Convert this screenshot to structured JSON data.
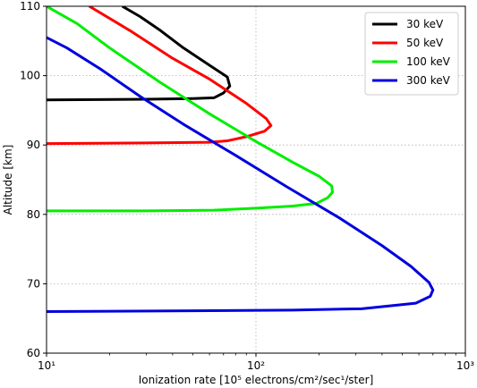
{
  "chart_data": {
    "type": "line",
    "xlabel": "Ionization rate [10⁵ electrons/cm²/sec¹/ster]",
    "ylabel": "Altitude [km]",
    "xscale": "log",
    "xlim": [
      10,
      1000
    ],
    "ylim": [
      60,
      110
    ],
    "xticks": [
      {
        "value": 10,
        "label": "10¹"
      },
      {
        "value": 100,
        "label": "10²"
      },
      {
        "value": 1000,
        "label": "10³"
      }
    ],
    "yticks": [
      60,
      70,
      80,
      90,
      100,
      110
    ],
    "grid": true,
    "legend_position": "top-right",
    "series": [
      {
        "name": "30 keV",
        "color": "#000000",
        "points": [
          [
            10,
            96.5
          ],
          [
            30,
            96.6
          ],
          [
            50,
            96.7
          ],
          [
            63,
            96.8
          ],
          [
            70,
            97.5
          ],
          [
            75,
            98.5
          ],
          [
            73,
            99.8
          ],
          [
            60,
            101.5
          ],
          [
            45,
            104
          ],
          [
            35,
            106.5
          ],
          [
            28,
            108.5
          ],
          [
            23,
            110
          ]
        ]
      },
      {
        "name": "50 keV",
        "color": "#ff0000",
        "points": [
          [
            10,
            90.2
          ],
          [
            30,
            90.3
          ],
          [
            60,
            90.4
          ],
          [
            73,
            90.6
          ],
          [
            90,
            91.2
          ],
          [
            110,
            92
          ],
          [
            118,
            92.8
          ],
          [
            112,
            93.8
          ],
          [
            90,
            96
          ],
          [
            60,
            99.5
          ],
          [
            40,
            102.5
          ],
          [
            25,
            106.5
          ],
          [
            16,
            110
          ]
        ]
      },
      {
        "name": "100 keV",
        "color": "#00ee00",
        "points": [
          [
            10,
            80.5
          ],
          [
            30,
            80.5
          ],
          [
            63,
            80.6
          ],
          [
            100,
            80.9
          ],
          [
            150,
            81.2
          ],
          [
            195,
            81.6
          ],
          [
            220,
            82.4
          ],
          [
            232,
            83.2
          ],
          [
            230,
            84.1
          ],
          [
            200,
            85.5
          ],
          [
            150,
            87.5
          ],
          [
            100,
            90.5
          ],
          [
            60,
            94.5
          ],
          [
            35,
            99
          ],
          [
            20,
            104
          ],
          [
            14,
            107.5
          ],
          [
            10,
            110
          ]
        ]
      },
      {
        "name": "300 keV",
        "color": "#0000dd",
        "points": [
          [
            10,
            66
          ],
          [
            50,
            66.1
          ],
          [
            150,
            66.2
          ],
          [
            320,
            66.4
          ],
          [
            580,
            67.2
          ],
          [
            680,
            68.2
          ],
          [
            700,
            69.1
          ],
          [
            670,
            70.2
          ],
          [
            550,
            72.5
          ],
          [
            400,
            75.5
          ],
          [
            250,
            79.5
          ],
          [
            140,
            84
          ],
          [
            80,
            88.5
          ],
          [
            45,
            93
          ],
          [
            28,
            97
          ],
          [
            18,
            101
          ],
          [
            12.5,
            104
          ],
          [
            10,
            105.5
          ]
        ]
      }
    ]
  }
}
